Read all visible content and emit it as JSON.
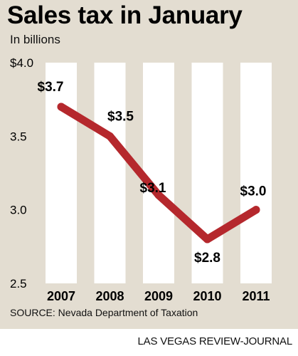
{
  "title": "Sales tax in January",
  "subtitle": "In billions",
  "source": "SOURCE: Nevada Department of Taxation",
  "credit": "LAS VEGAS REVIEW-JOURNAL",
  "colors": {
    "background": "#e3ddd1",
    "column": "#ffffff",
    "line": "#b5282d",
    "text": "#000000"
  },
  "chart_data": {
    "type": "line",
    "title": "Sales tax in January",
    "subtitle": "In billions",
    "xlabel": "",
    "ylabel": "",
    "categories": [
      "2007",
      "2008",
      "2009",
      "2010",
      "2011"
    ],
    "values": [
      3.7,
      3.5,
      3.1,
      2.8,
      3.0
    ],
    "data_labels": [
      "$3.7",
      "$3.5",
      "$3.1",
      "$2.8",
      "$3.0"
    ],
    "ylim": [
      2.5,
      4.0
    ],
    "yticks": [
      {
        "value": 4.0,
        "label": "$4.0"
      },
      {
        "value": 3.5,
        "label": "3.5"
      },
      {
        "value": 3.0,
        "label": "3.0"
      },
      {
        "value": 2.5,
        "label": "2.5"
      }
    ],
    "grid": false,
    "legend": "none"
  }
}
